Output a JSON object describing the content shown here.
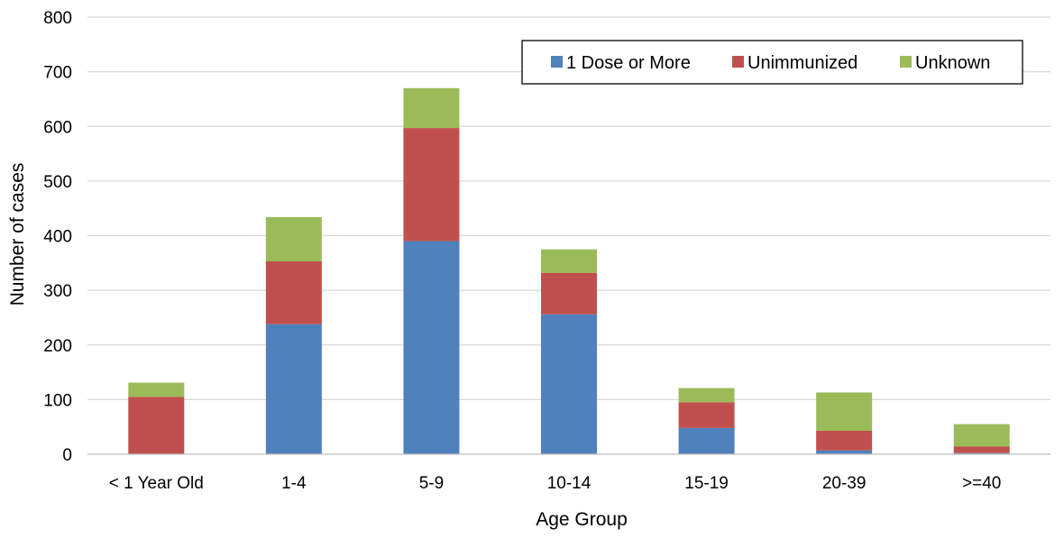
{
  "chart_data": {
    "type": "bar",
    "stacked": true,
    "title": "",
    "xlabel": "Age Group",
    "ylabel": "Number of cases",
    "ylim": [
      0,
      800
    ],
    "yticks": [
      0,
      100,
      200,
      300,
      400,
      500,
      600,
      700,
      800
    ],
    "ytick_labels": [
      "0",
      "100",
      "200",
      "300",
      "400",
      "500",
      "600",
      "700",
      "800"
    ],
    "grid": "horizontal",
    "legend_position": "top-right",
    "categories": [
      "< 1 Year Old",
      "1-4",
      "5-9",
      "10-14",
      "15-19",
      "20-39",
      ">=40"
    ],
    "series": [
      {
        "name": "1 Dose or More",
        "color": "#4F81BD",
        "values": [
          0,
          238,
          390,
          256,
          48,
          7,
          2
        ]
      },
      {
        "name": "Unimmunized",
        "color": "#C0504D",
        "values": [
          105,
          115,
          207,
          76,
          47,
          36,
          12
        ]
      },
      {
        "name": "Unknown",
        "color": "#9BBB59",
        "values": [
          26,
          81,
          73,
          43,
          26,
          70,
          41
        ]
      }
    ]
  }
}
